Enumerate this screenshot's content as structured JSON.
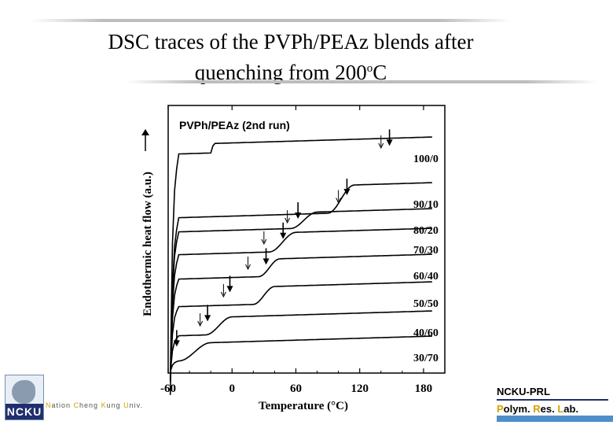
{
  "slide": {
    "title_line1": "DSC traces of the PVPh/PEAz blends after",
    "title_line2_pre": "quenching from 200",
    "title_line2_sup": "o",
    "title_line2_post": "C"
  },
  "footer": {
    "logo_text": "NCKU",
    "univ_parts": [
      "N",
      "ation ",
      "C",
      "heng ",
      "K",
      "ung ",
      "U",
      "niv."
    ],
    "lab_line1": "NCKU-PRL",
    "lab_parts": [
      "P",
      "olym. ",
      "R",
      "es. ",
      "L",
      "ab."
    ]
  },
  "chart_data": {
    "type": "line",
    "inner_title": "PVPh/PEAz (2nd run)",
    "xlabel": "Temperature (°C)",
    "ylabel": "Endothermic heat flow (a.u.)",
    "xlim": [
      -60,
      200
    ],
    "xticks": [
      -60,
      0,
      60,
      120,
      180
    ],
    "y_arrow": "up",
    "series": [
      {
        "name": "100/0",
        "tg_step": [
          -20,
          -17
        ],
        "arrows": [
          148
        ],
        "open_arrows": [
          140
        ]
      },
      {
        "name": "90/10",
        "tg_step": [
          90,
          115
        ],
        "arrows": [
          108
        ],
        "open_arrows": [
          100
        ]
      },
      {
        "name": "80/20",
        "tg_step": [
          55,
          80
        ],
        "arrows": [
          62
        ],
        "open_arrows": [
          52
        ]
      },
      {
        "name": "70/30",
        "tg_step": [
          35,
          60
        ],
        "arrows": [
          48
        ],
        "open_arrows": [
          30
        ]
      },
      {
        "name": "60/40",
        "tg_step": [
          25,
          45
        ],
        "arrows": [
          32
        ],
        "open_arrows": [
          15
        ]
      },
      {
        "name": "50/50",
        "tg_step": [
          20,
          40
        ],
        "arrows": [
          -2
        ],
        "open_arrows": [
          -8
        ]
      },
      {
        "name": "40/60",
        "tg_step": [
          -25,
          0
        ],
        "arrows": [
          -23
        ],
        "open_arrows": [
          -30
        ]
      },
      {
        "name": "30/70",
        "tg_step": [
          -50,
          -20
        ],
        "arrows": [
          -52
        ],
        "open_arrows": []
      }
    ]
  }
}
